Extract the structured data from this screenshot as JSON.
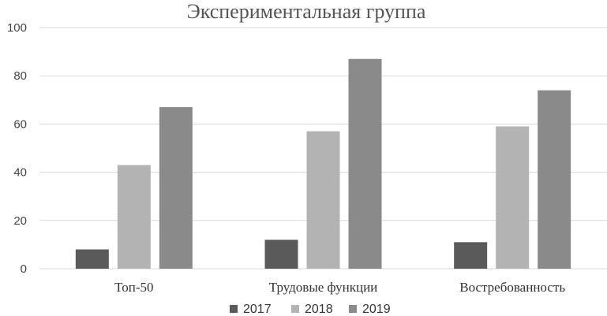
{
  "chart_data": {
    "type": "bar",
    "title": "Экспериментальная группа",
    "xlabel": "",
    "ylabel": "",
    "ylim": [
      0,
      100
    ],
    "yticks": [
      0,
      20,
      40,
      60,
      80,
      100
    ],
    "grid": true,
    "legend_position": "bottom",
    "categories": [
      "Топ-50",
      "Трудовые функции",
      "Востребованность"
    ],
    "series": [
      {
        "name": "2017",
        "color": "#5a5a5a",
        "values": [
          8,
          12,
          11
        ]
      },
      {
        "name": "2018",
        "color": "#b3b3b3",
        "values": [
          43,
          57,
          59
        ]
      },
      {
        "name": "2019",
        "color": "#8a8a8a",
        "values": [
          67,
          87,
          74
        ]
      }
    ]
  }
}
